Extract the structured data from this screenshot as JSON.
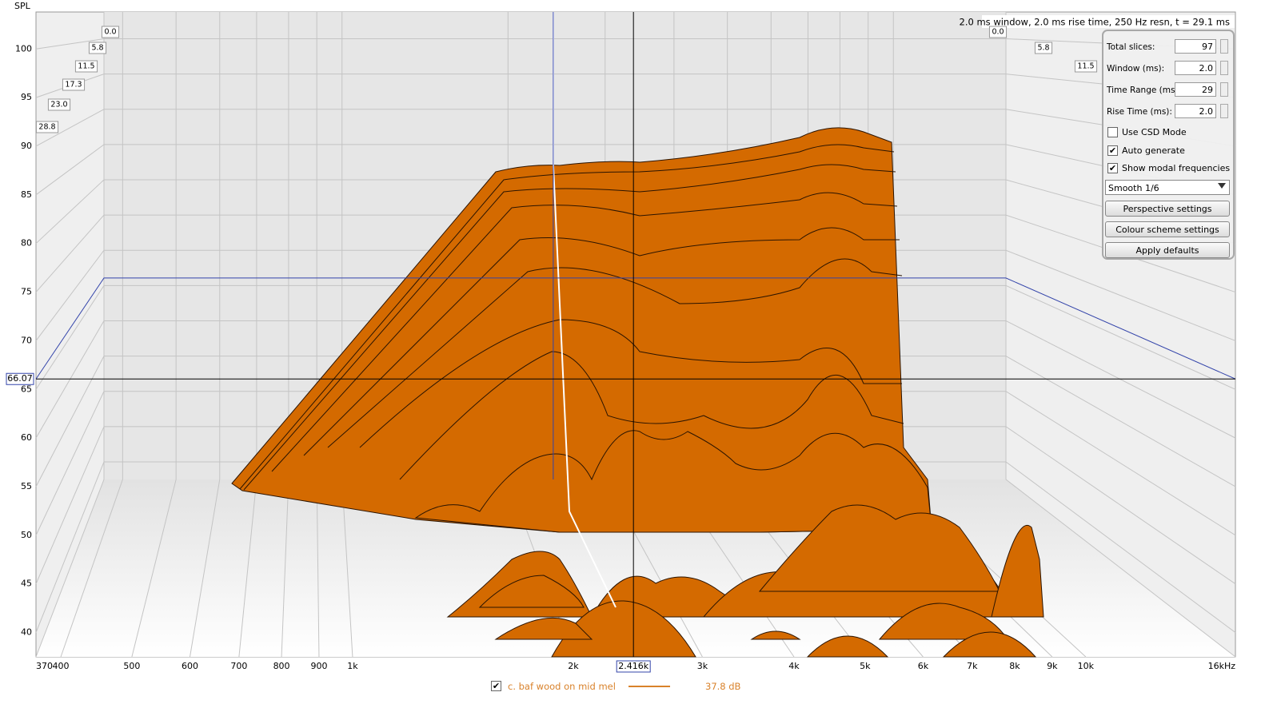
{
  "header": {
    "info": "2.0 ms window, 2.0 ms rise time,  250 Hz resn, t = 29.1 ms"
  },
  "plot": {
    "y_label": "SPL",
    "ylim": [
      37.5,
      103.8
    ],
    "yticks": [
      40,
      45,
      50,
      55,
      60,
      65,
      70,
      75,
      80,
      85,
      90,
      95,
      100
    ],
    "xlim": [
      370,
      16000
    ],
    "x_log": true,
    "xticks": [
      370,
      400,
      500,
      600,
      700,
      800,
      900,
      {
        "value": 1000,
        "label": "1k"
      },
      {
        "value": 2000,
        "label": "2k"
      },
      {
        "value": 3000,
        "label": "3k"
      },
      {
        "value": 4000,
        "label": "4k"
      },
      {
        "value": 5000,
        "label": "5k"
      },
      {
        "value": 6000,
        "label": "6k"
      },
      {
        "value": 7000,
        "label": "7k"
      },
      {
        "value": 8000,
        "label": "8k"
      },
      {
        "value": 9000,
        "label": "9k"
      },
      {
        "value": 10000,
        "label": "10k"
      },
      {
        "value": 16000,
        "label": "16kHz"
      }
    ],
    "time_labels": [
      "0.0",
      "5.8",
      "11.5",
      "17.3",
      "23.0",
      "28.8"
    ],
    "cursor": {
      "y": 66.07,
      "x": {
        "value": 2416,
        "label": "2.416k"
      }
    }
  },
  "controls": {
    "fields": [
      {
        "label": "Total slices:",
        "value": "97"
      },
      {
        "label": "Window (ms):",
        "value": "2.0"
      },
      {
        "label": "Time Range (ms):",
        "value": "29"
      },
      {
        "label": "Rise Time (ms):",
        "value": "2.0"
      }
    ],
    "checkboxes": [
      {
        "label": "Use CSD Mode",
        "checked": false
      },
      {
        "label": "Auto generate",
        "checked": true
      },
      {
        "label": "Show modal frequencies",
        "checked": true
      }
    ],
    "dropdown": "Smooth 1/6",
    "buttons": [
      "Perspective settings",
      "Colour scheme settings",
      "Apply defaults"
    ]
  },
  "legend": {
    "checked": true,
    "name": "c. baf wood on mid mel",
    "color": "#d9822b",
    "level": "37.8 dB"
  }
}
